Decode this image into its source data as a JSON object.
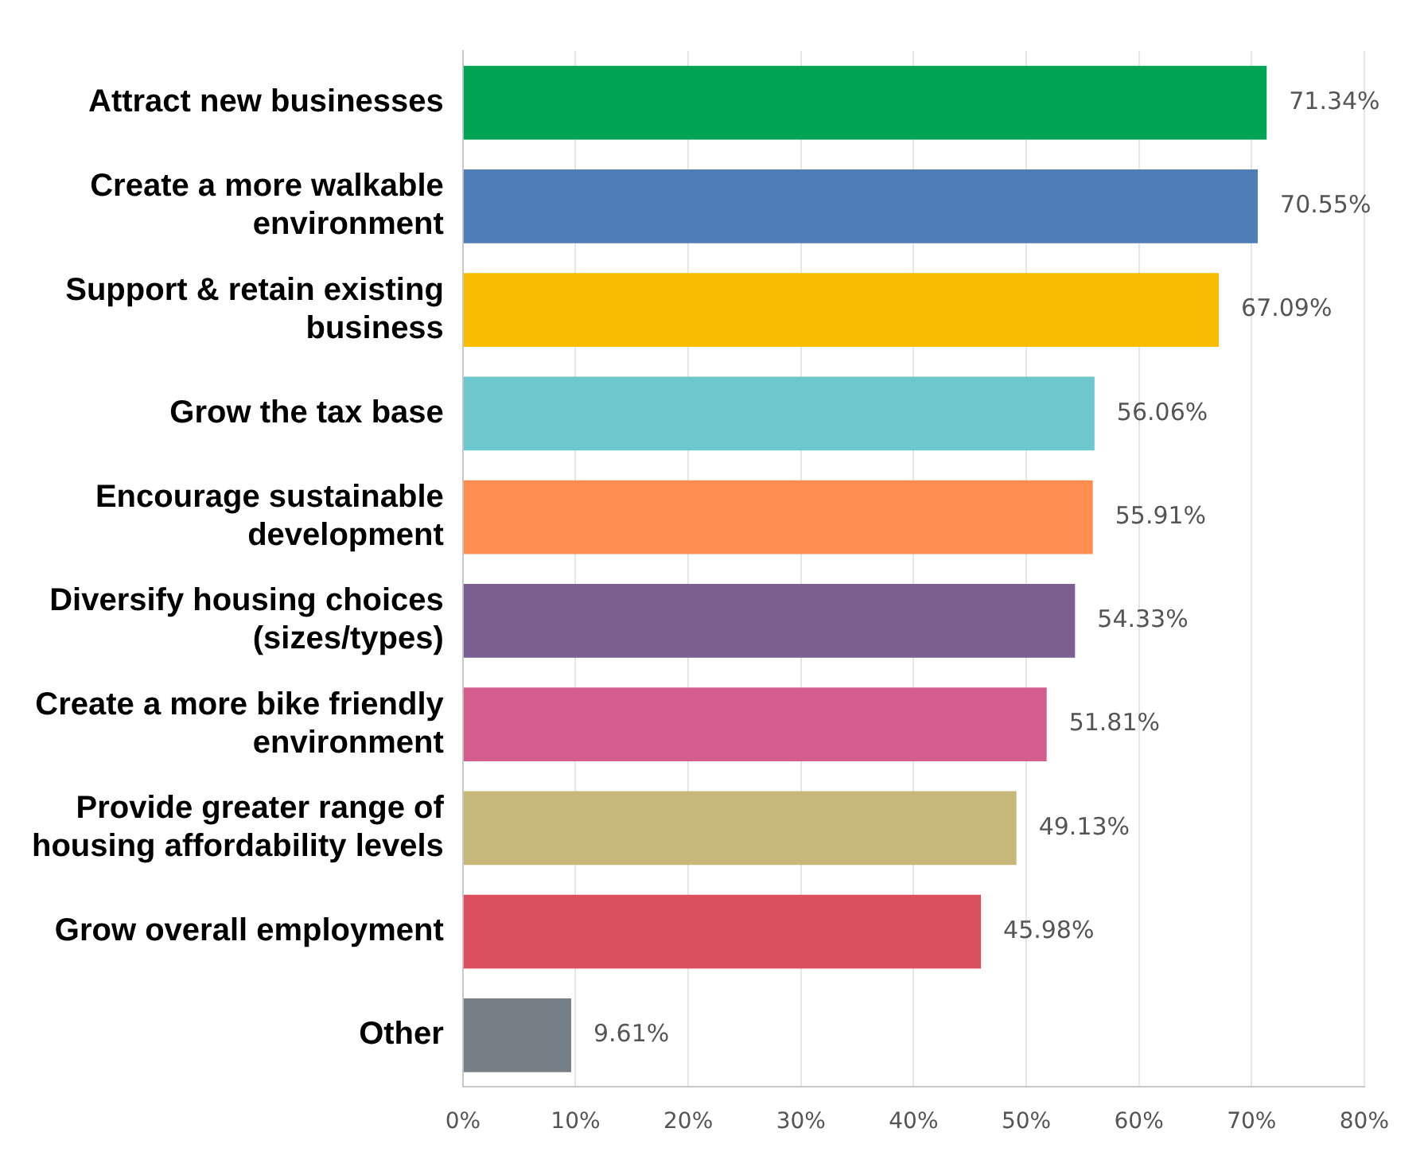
{
  "chart_data": {
    "type": "bar",
    "orientation": "horizontal",
    "categories": [
      "Attract new businesses",
      "Create a more walkable environment",
      "Support & retain existing business",
      "Grow the tax base",
      "Encourage sustainable development",
      "Diversify housing choices (sizes/types)",
      "Create a more bike friendly environment",
      "Provide greater range of housing affordability levels",
      "Grow overall employment",
      "Other"
    ],
    "values": [
      71.34,
      70.55,
      67.09,
      56.06,
      55.91,
      54.33,
      51.81,
      49.13,
      45.98,
      9.61
    ],
    "colors": [
      "#00a454",
      "#4f7db5",
      "#f8bd00",
      "#6cc8cc",
      "#ff8c50",
      "#7b5f91",
      "#d55d8e",
      "#c8b97a",
      "#dc4f5f",
      "#767f86"
    ],
    "value_labels": [
      "71.34%",
      "70.55%",
      "67.09%",
      "56.06%",
      "55.91%",
      "54.33%",
      "51.81%",
      "49.13%",
      "45.98%",
      "9.61%"
    ],
    "xlim": [
      0,
      80
    ],
    "xticks": [
      {
        "value": 0,
        "label": "0%"
      },
      {
        "value": 10,
        "label": "10%"
      },
      {
        "value": 20,
        "label": "20%"
      },
      {
        "value": 30,
        "label": "30%"
      },
      {
        "value": 40,
        "label": "40%"
      },
      {
        "value": 50,
        "label": "50%"
      },
      {
        "value": 60,
        "label": "60%"
      },
      {
        "value": 70,
        "label": "70%"
      },
      {
        "value": 80,
        "label": "80%"
      }
    ],
    "grid": "x",
    "legend": false
  }
}
